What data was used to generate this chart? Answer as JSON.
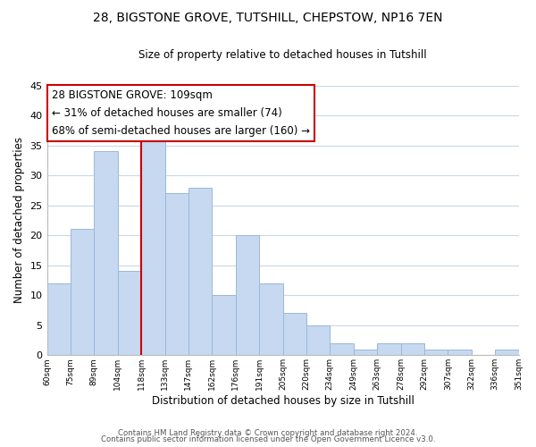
{
  "title1": "28, BIGSTONE GROVE, TUTSHILL, CHEPSTOW, NP16 7EN",
  "title2": "Size of property relative to detached houses in Tutshill",
  "xlabel": "Distribution of detached houses by size in Tutshill",
  "ylabel": "Number of detached properties",
  "bin_labels": [
    "60sqm",
    "75sqm",
    "89sqm",
    "104sqm",
    "118sqm",
    "133sqm",
    "147sqm",
    "162sqm",
    "176sqm",
    "191sqm",
    "205sqm",
    "220sqm",
    "234sqm",
    "249sqm",
    "263sqm",
    "278sqm",
    "292sqm",
    "307sqm",
    "322sqm",
    "336sqm",
    "351sqm"
  ],
  "bar_values": [
    12,
    21,
    34,
    14,
    36,
    27,
    28,
    10,
    20,
    12,
    7,
    5,
    2,
    1,
    2,
    2,
    1,
    1,
    0,
    1
  ],
  "bar_color": "#c6d9f1",
  "bar_edge_color": "#9ab8d8",
  "grid_color": "#c8d8e8",
  "vline_x_index": 4,
  "vline_color": "#cc0000",
  "annotation_text": "28 BIGSTONE GROVE: 109sqm\n← 31% of detached houses are smaller (74)\n68% of semi-detached houses are larger (160) →",
  "annotation_box_color": "#ffffff",
  "annotation_box_edge": "#cc0000",
  "ylim": [
    0,
    45
  ],
  "yticks": [
    0,
    5,
    10,
    15,
    20,
    25,
    30,
    35,
    40,
    45
  ],
  "footer1": "Contains HM Land Registry data © Crown copyright and database right 2024.",
  "footer2": "Contains public sector information licensed under the Open Government Licence v3.0."
}
